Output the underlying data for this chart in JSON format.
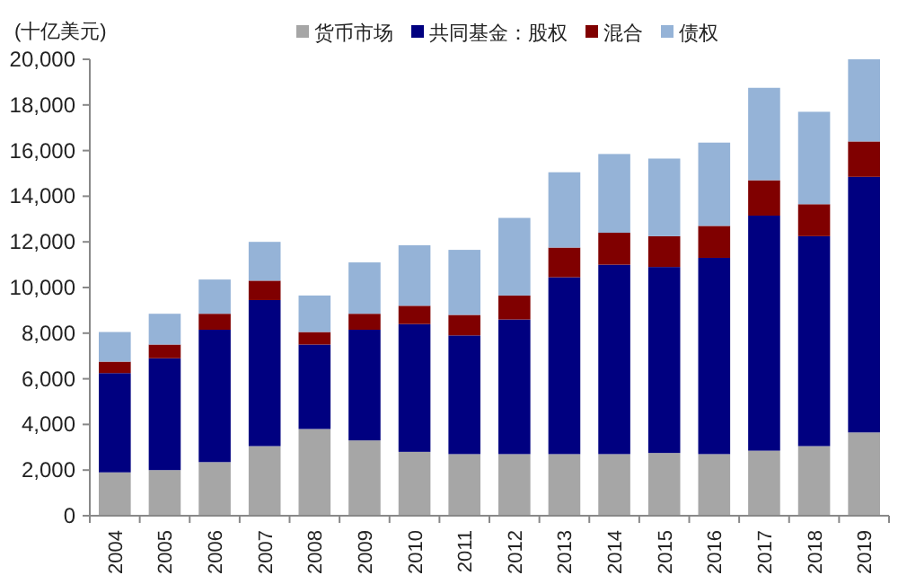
{
  "chart_data": {
    "type": "bar",
    "stacked": true,
    "ylabel": "(十亿美元)",
    "legend": "top",
    "grid": false,
    "categories": [
      "2004",
      "2005",
      "2006",
      "2007",
      "2008",
      "2009",
      "2010",
      "2011",
      "2012",
      "2013",
      "2014",
      "2015",
      "2016",
      "2017",
      "2018",
      "2019"
    ],
    "series": [
      {
        "name": "货币市场",
        "color": "#a6a6a6",
        "values": [
          1900,
          2000,
          2350,
          3050,
          3800,
          3300,
          2800,
          2700,
          2700,
          2700,
          2700,
          2750,
          2700,
          2850,
          3050,
          3650
        ]
      },
      {
        "name": "共同基金：股权",
        "color": "#000080",
        "values": [
          4350,
          4900,
          5800,
          6400,
          3700,
          4850,
          5600,
          5200,
          5900,
          7750,
          8300,
          8150,
          8600,
          10300,
          9200,
          11200
        ]
      },
      {
        "name": "混合",
        "color": "#800000",
        "values": [
          500,
          600,
          700,
          850,
          550,
          700,
          800,
          900,
          1050,
          1300,
          1400,
          1350,
          1400,
          1550,
          1400,
          1550
        ]
      },
      {
        "name": "债权",
        "color": "#95b3d7",
        "values": [
          1300,
          1350,
          1500,
          1700,
          1600,
          2250,
          2650,
          2850,
          3400,
          3300,
          3450,
          3400,
          3650,
          4050,
          4050,
          3600
        ]
      }
    ],
    "ylim": [
      0,
      20000
    ],
    "yticks": [
      0,
      {
        "value": 2000,
        "label": "2,000"
      },
      {
        "value": 4000,
        "label": "4,000"
      },
      {
        "value": 6000,
        "label": "6,000"
      },
      {
        "value": 8000,
        "label": "8,000"
      },
      {
        "value": 10000,
        "label": "10,000"
      },
      {
        "value": 12000,
        "label": "12,000"
      },
      {
        "value": 14000,
        "label": "14,000"
      },
      {
        "value": 16000,
        "label": "16,000"
      },
      {
        "value": 18000,
        "label": "18,000"
      },
      {
        "value": 20000,
        "label": "20,000"
      }
    ]
  }
}
